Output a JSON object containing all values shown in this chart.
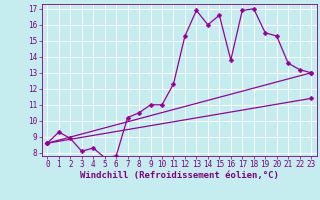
{
  "xlabel": "Windchill (Refroidissement éolien,°C)",
  "bg_color": "#c5ecee",
  "grid_color": "#ffffff",
  "line_color": "#990099",
  "xlim": [
    -0.5,
    23.5
  ],
  "ylim": [
    7.8,
    17.3
  ],
  "xticks": [
    0,
    1,
    2,
    3,
    4,
    5,
    6,
    7,
    8,
    9,
    10,
    11,
    12,
    13,
    14,
    15,
    16,
    17,
    18,
    19,
    20,
    21,
    22,
    23
  ],
  "yticks": [
    8,
    9,
    10,
    11,
    12,
    13,
    14,
    15,
    16,
    17
  ],
  "line1_x": [
    0,
    1,
    2,
    3,
    4,
    5,
    6,
    7,
    8,
    9,
    10,
    11,
    12,
    13,
    14,
    15,
    16,
    17,
    18,
    19,
    20,
    21,
    22,
    23
  ],
  "line1_y": [
    8.6,
    9.3,
    8.9,
    8.1,
    8.3,
    7.7,
    7.8,
    10.2,
    10.5,
    11.0,
    11.0,
    12.3,
    15.3,
    16.9,
    16.0,
    16.6,
    13.8,
    16.9,
    17.0,
    15.5,
    15.3,
    13.6,
    13.2,
    13.0
  ],
  "line2_x": [
    0,
    23
  ],
  "line2_y": [
    8.6,
    11.4
  ],
  "line3_x": [
    0,
    23
  ],
  "line3_y": [
    8.6,
    13.0
  ],
  "markersize": 2.5,
  "linewidth": 0.9,
  "xlabel_fontsize": 6.5,
  "tick_fontsize": 5.5,
  "label_color": "#800080"
}
